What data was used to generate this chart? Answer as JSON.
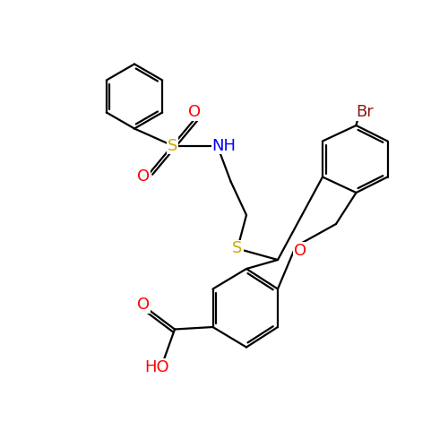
{
  "background_color": "#ffffff",
  "colors": {
    "bond": "#000000",
    "O": "#ff0000",
    "N": "#0000ff",
    "S": "#ccaa00",
    "Br": "#8b1a1a"
  },
  "bond_lw": 1.6,
  "font_size": 12
}
